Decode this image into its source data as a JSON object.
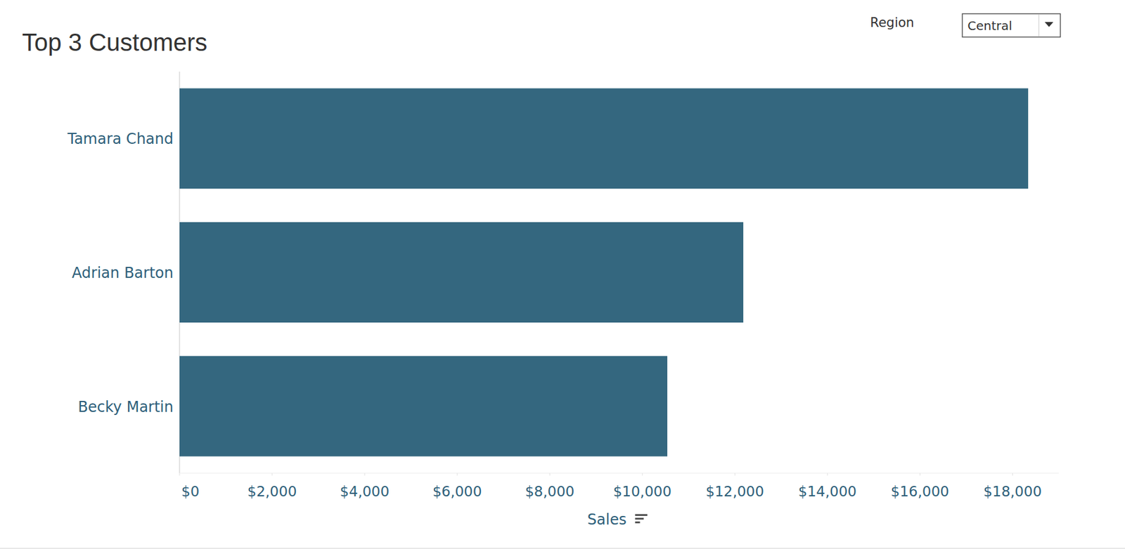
{
  "chart_data": {
    "type": "bar",
    "title": "Top 3 Customers",
    "orientation": "horizontal",
    "filter": {
      "label": "Region",
      "value": "Central"
    },
    "categories": [
      "Tamara Chand",
      "Adrian Barton",
      "Becky Martin"
    ],
    "values": [
      18337,
      12182,
      10540
    ],
    "color": "#34677f",
    "x_label": "Sales",
    "xlim": [
      0,
      19000
    ],
    "xticks": [
      {
        "value": 0,
        "label": "$0"
      },
      {
        "value": 2000,
        "label": "$2,000"
      },
      {
        "value": 4000,
        "label": "$4,000"
      },
      {
        "value": 6000,
        "label": "$6,000"
      },
      {
        "value": 8000,
        "label": "$8,000"
      },
      {
        "value": 10000,
        "label": "$10,000"
      },
      {
        "value": 12000,
        "label": "$12,000"
      },
      {
        "value": 14000,
        "label": "$14,000"
      },
      {
        "value": 16000,
        "label": "$16,000"
      },
      {
        "value": 18000,
        "label": "$18,000"
      }
    ],
    "grid": false
  }
}
